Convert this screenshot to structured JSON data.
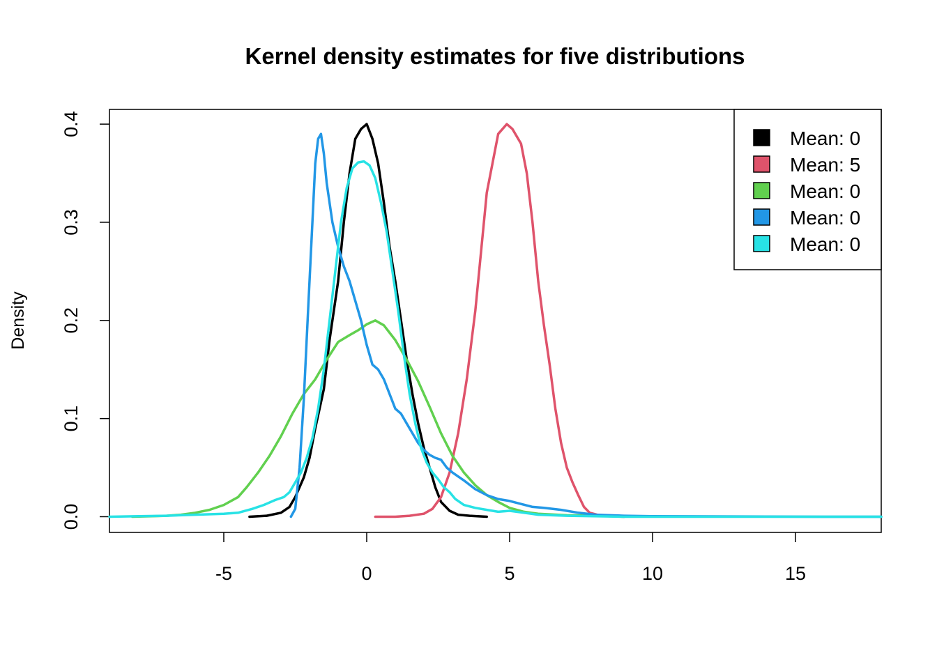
{
  "chart_data": {
    "type": "line",
    "title": "Kernel density estimates for five distributions",
    "xlabel": "",
    "ylabel": "Density",
    "xlim": [
      -9,
      18
    ],
    "ylim": [
      -0.016,
      0.415
    ],
    "x_ticks": [
      -5,
      0,
      5,
      10,
      15
    ],
    "y_ticks": [
      0.0,
      0.1,
      0.2,
      0.3,
      0.4
    ],
    "grid": false,
    "legend_position": "top-right",
    "series": [
      {
        "name": "Mean: 0",
        "color": "#000000",
        "points": [
          [
            -4.1,
            0.0
          ],
          [
            -3.5,
            0.001
          ],
          [
            -3.0,
            0.004
          ],
          [
            -2.7,
            0.01
          ],
          [
            -2.5,
            0.02
          ],
          [
            -2.2,
            0.04
          ],
          [
            -2.0,
            0.06
          ],
          [
            -1.8,
            0.09
          ],
          [
            -1.5,
            0.13
          ],
          [
            -1.3,
            0.18
          ],
          [
            -1.0,
            0.24
          ],
          [
            -0.8,
            0.3
          ],
          [
            -0.6,
            0.35
          ],
          [
            -0.4,
            0.385
          ],
          [
            -0.2,
            0.395
          ],
          [
            0.0,
            0.4
          ],
          [
            0.2,
            0.385
          ],
          [
            0.4,
            0.36
          ],
          [
            0.6,
            0.32
          ],
          [
            0.8,
            0.275
          ],
          [
            1.0,
            0.24
          ],
          [
            1.2,
            0.2
          ],
          [
            1.4,
            0.16
          ],
          [
            1.6,
            0.125
          ],
          [
            1.8,
            0.095
          ],
          [
            2.0,
            0.07
          ],
          [
            2.2,
            0.05
          ],
          [
            2.4,
            0.03
          ],
          [
            2.6,
            0.015
          ],
          [
            2.9,
            0.006
          ],
          [
            3.2,
            0.002
          ],
          [
            3.6,
            0.001
          ],
          [
            4.2,
            0.0
          ]
        ]
      },
      {
        "name": "Mean: 5",
        "color": "#DF536B",
        "points": [
          [
            0.3,
            0.0
          ],
          [
            1.0,
            0.0
          ],
          [
            1.5,
            0.001
          ],
          [
            2.0,
            0.003
          ],
          [
            2.3,
            0.008
          ],
          [
            2.6,
            0.02
          ],
          [
            2.9,
            0.045
          ],
          [
            3.2,
            0.085
          ],
          [
            3.5,
            0.14
          ],
          [
            3.8,
            0.21
          ],
          [
            4.0,
            0.27
          ],
          [
            4.2,
            0.33
          ],
          [
            4.4,
            0.36
          ],
          [
            4.6,
            0.39
          ],
          [
            4.9,
            0.4
          ],
          [
            5.1,
            0.395
          ],
          [
            5.4,
            0.38
          ],
          [
            5.6,
            0.35
          ],
          [
            5.8,
            0.3
          ],
          [
            6.0,
            0.24
          ],
          [
            6.2,
            0.195
          ],
          [
            6.4,
            0.155
          ],
          [
            6.6,
            0.11
          ],
          [
            6.8,
            0.075
          ],
          [
            7.0,
            0.05
          ],
          [
            7.2,
            0.035
          ],
          [
            7.4,
            0.022
          ],
          [
            7.6,
            0.01
          ],
          [
            7.8,
            0.004
          ],
          [
            8.2,
            0.001
          ],
          [
            9.0,
            0.0
          ]
        ]
      },
      {
        "name": "Mean: 0",
        "color": "#61D04F",
        "points": [
          [
            -8.2,
            0.0
          ],
          [
            -7.5,
            0.0005
          ],
          [
            -7.0,
            0.001
          ],
          [
            -6.5,
            0.002
          ],
          [
            -6.0,
            0.004
          ],
          [
            -5.5,
            0.007
          ],
          [
            -5.0,
            0.012
          ],
          [
            -4.5,
            0.02
          ],
          [
            -4.2,
            0.03
          ],
          [
            -3.8,
            0.045
          ],
          [
            -3.4,
            0.062
          ],
          [
            -3.0,
            0.082
          ],
          [
            -2.6,
            0.105
          ],
          [
            -2.2,
            0.125
          ],
          [
            -1.8,
            0.14
          ],
          [
            -1.4,
            0.16
          ],
          [
            -1.0,
            0.178
          ],
          [
            -0.6,
            0.185
          ],
          [
            -0.3,
            0.19
          ],
          [
            0.0,
            0.196
          ],
          [
            0.3,
            0.2
          ],
          [
            0.6,
            0.195
          ],
          [
            1.0,
            0.18
          ],
          [
            1.4,
            0.16
          ],
          [
            1.8,
            0.138
          ],
          [
            2.2,
            0.112
          ],
          [
            2.6,
            0.085
          ],
          [
            3.0,
            0.062
          ],
          [
            3.4,
            0.045
          ],
          [
            3.8,
            0.032
          ],
          [
            4.2,
            0.022
          ],
          [
            4.6,
            0.015
          ],
          [
            5.0,
            0.009
          ],
          [
            5.5,
            0.005
          ],
          [
            6.0,
            0.003
          ],
          [
            7.0,
            0.0015
          ],
          [
            8.0,
            0.001
          ],
          [
            9.0,
            0.0
          ]
        ]
      },
      {
        "name": "Mean: 0",
        "color": "#2297E6",
        "points": [
          [
            -2.65,
            0.0
          ],
          [
            -2.5,
            0.008
          ],
          [
            -2.35,
            0.05
          ],
          [
            -2.2,
            0.12
          ],
          [
            -2.05,
            0.21
          ],
          [
            -1.9,
            0.3
          ],
          [
            -1.8,
            0.36
          ],
          [
            -1.7,
            0.385
          ],
          [
            -1.6,
            0.39
          ],
          [
            -1.5,
            0.37
          ],
          [
            -1.4,
            0.34
          ],
          [
            -1.2,
            0.3
          ],
          [
            -1.0,
            0.275
          ],
          [
            -0.8,
            0.255
          ],
          [
            -0.6,
            0.24
          ],
          [
            -0.4,
            0.22
          ],
          [
            -0.2,
            0.2
          ],
          [
            0.0,
            0.175
          ],
          [
            0.2,
            0.155
          ],
          [
            0.4,
            0.15
          ],
          [
            0.6,
            0.14
          ],
          [
            0.8,
            0.125
          ],
          [
            1.0,
            0.11
          ],
          [
            1.2,
            0.105
          ],
          [
            1.4,
            0.095
          ],
          [
            1.6,
            0.085
          ],
          [
            1.8,
            0.075
          ],
          [
            2.0,
            0.068
          ],
          [
            2.2,
            0.063
          ],
          [
            2.4,
            0.06
          ],
          [
            2.6,
            0.058
          ],
          [
            2.8,
            0.05
          ],
          [
            3.0,
            0.045
          ],
          [
            3.4,
            0.037
          ],
          [
            3.8,
            0.028
          ],
          [
            4.2,
            0.022
          ],
          [
            4.6,
            0.018
          ],
          [
            5.0,
            0.016
          ],
          [
            5.4,
            0.013
          ],
          [
            5.8,
            0.01
          ],
          [
            6.2,
            0.009
          ],
          [
            6.8,
            0.007
          ],
          [
            7.4,
            0.004
          ],
          [
            8.0,
            0.002
          ],
          [
            9.0,
            0.001
          ],
          [
            10.0,
            0.0005
          ],
          [
            12.0,
            0.0003
          ],
          [
            14.0,
            0.0001
          ],
          [
            16.0,
            0.0
          ],
          [
            18.0,
            0.0
          ]
        ]
      },
      {
        "name": "Mean: 0",
        "color": "#28E2E5",
        "points": [
          [
            -9.0,
            0.0
          ],
          [
            -8.0,
            0.0005
          ],
          [
            -7.0,
            0.001
          ],
          [
            -6.0,
            0.002
          ],
          [
            -5.0,
            0.003
          ],
          [
            -4.5,
            0.004
          ],
          [
            -4.0,
            0.008
          ],
          [
            -3.6,
            0.012
          ],
          [
            -3.2,
            0.017
          ],
          [
            -2.9,
            0.02
          ],
          [
            -2.7,
            0.025
          ],
          [
            -2.5,
            0.035
          ],
          [
            -2.3,
            0.045
          ],
          [
            -2.1,
            0.06
          ],
          [
            -1.9,
            0.08
          ],
          [
            -1.7,
            0.11
          ],
          [
            -1.5,
            0.15
          ],
          [
            -1.3,
            0.2
          ],
          [
            -1.1,
            0.25
          ],
          [
            -0.9,
            0.3
          ],
          [
            -0.7,
            0.335
          ],
          [
            -0.5,
            0.355
          ],
          [
            -0.3,
            0.361
          ],
          [
            -0.1,
            0.362
          ],
          [
            0.1,
            0.358
          ],
          [
            0.3,
            0.345
          ],
          [
            0.5,
            0.32
          ],
          [
            0.7,
            0.29
          ],
          [
            0.9,
            0.25
          ],
          [
            1.1,
            0.21
          ],
          [
            1.3,
            0.165
          ],
          [
            1.5,
            0.125
          ],
          [
            1.7,
            0.095
          ],
          [
            1.9,
            0.07
          ],
          [
            2.1,
            0.055
          ],
          [
            2.3,
            0.045
          ],
          [
            2.5,
            0.038
          ],
          [
            2.7,
            0.03
          ],
          [
            2.9,
            0.025
          ],
          [
            3.1,
            0.018
          ],
          [
            3.4,
            0.012
          ],
          [
            3.8,
            0.009
          ],
          [
            4.2,
            0.007
          ],
          [
            4.6,
            0.005
          ],
          [
            5.0,
            0.006
          ],
          [
            5.5,
            0.004
          ],
          [
            6.0,
            0.002
          ],
          [
            7.0,
            0.001
          ],
          [
            9.0,
            0.0
          ],
          [
            12.0,
            0.0
          ],
          [
            15.0,
            0.0
          ],
          [
            18.0,
            0.0
          ]
        ]
      }
    ]
  }
}
